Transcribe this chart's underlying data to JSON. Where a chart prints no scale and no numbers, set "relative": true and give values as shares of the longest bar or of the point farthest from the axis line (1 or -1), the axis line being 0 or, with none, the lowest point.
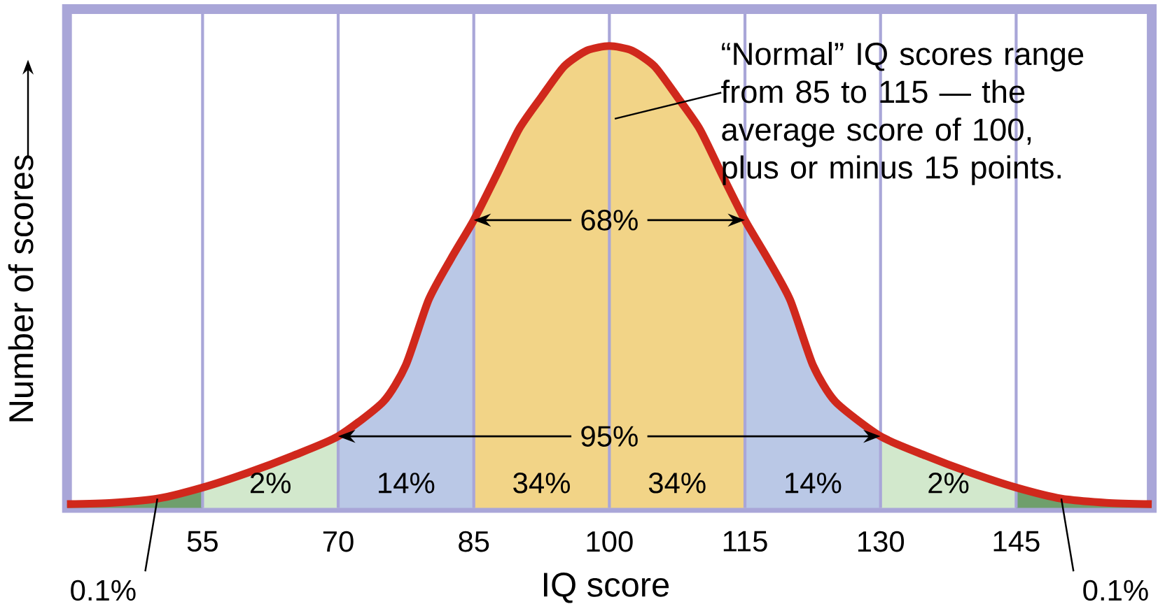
{
  "chart_data": {
    "type": "area",
    "relative": true,
    "xlabel": "IQ score",
    "ylabel": "Number of scores",
    "xlim": [
      40,
      160
    ],
    "xticks": [
      55,
      70,
      85,
      100,
      115,
      130,
      145
    ],
    "grid": "x",
    "series": [
      {
        "color": "#6f9f6c",
        "x": [
          40,
          45,
          50,
          55
        ],
        "values": [
          0.008,
          0.011,
          0.02,
          0.044
        ]
      },
      {
        "color": "#d2e8cc",
        "x": [
          55,
          60,
          65,
          70
        ],
        "values": [
          0.044,
          0.076,
          0.113,
          0.155
        ]
      },
      {
        "color": "#bac8e6",
        "x": [
          70,
          75,
          77.5,
          80,
          82.5,
          85
        ],
        "values": [
          0.155,
          0.23,
          0.31,
          0.45,
          0.54,
          0.623
        ]
      },
      {
        "color": "#f2d487",
        "x": [
          85,
          87.5,
          90,
          92.5,
          95,
          97.5,
          100
        ],
        "values": [
          0.623,
          0.72,
          0.82,
          0.89,
          0.956,
          0.99,
          1
        ]
      },
      {
        "color": "#f2d487",
        "x": [
          100,
          102.5,
          105,
          107.5,
          110,
          112.5,
          115
        ],
        "values": [
          1,
          0.99,
          0.956,
          0.89,
          0.82,
          0.72,
          0.623
        ]
      },
      {
        "color": "#bac8e6",
        "x": [
          115,
          117.5,
          120,
          122.5,
          125,
          130
        ],
        "values": [
          0.623,
          0.54,
          0.45,
          0.31,
          0.23,
          0.155
        ]
      },
      {
        "color": "#d2e8cc",
        "x": [
          130,
          135,
          140,
          145
        ],
        "values": [
          0.155,
          0.113,
          0.076,
          0.044
        ]
      },
      {
        "color": "#6f9f6c",
        "x": [
          145,
          150,
          155,
          160
        ],
        "values": [
          0.044,
          0.02,
          0.011,
          0.008
        ]
      },
      {
        "type": "line",
        "color": "#d0281c",
        "x": [
          40,
          45,
          50,
          55,
          60,
          65,
          70,
          75,
          77.5,
          80,
          82.5,
          85,
          87.5,
          90,
          92.5,
          95,
          97.5,
          100,
          102.5,
          105,
          107.5,
          110,
          112.5,
          115,
          117.5,
          120,
          122.5,
          125,
          130,
          135,
          140,
          145,
          150,
          155,
          160
        ],
        "values": [
          0.008,
          0.011,
          0.02,
          0.044,
          0.076,
          0.113,
          0.155,
          0.23,
          0.31,
          0.45,
          0.54,
          0.623,
          0.72,
          0.82,
          0.89,
          0.956,
          0.99,
          1,
          0.99,
          0.956,
          0.89,
          0.82,
          0.72,
          0.623,
          0.54,
          0.45,
          0.31,
          0.23,
          0.155,
          0.113,
          0.076,
          0.044,
          0.02,
          0.011,
          0.008
        ]
      }
    ],
    "annotations": [
      {
        "text": "0.1%",
        "x": 50,
        "y": 0.02
      },
      "2%",
      "14%",
      "34%",
      "34%",
      "14%",
      "2%",
      {
        "text": "0.1%",
        "x": 150,
        "y": 0.02
      },
      {
        "text": "68%",
        "x": 100,
        "y": 0.623
      },
      {
        "text": "95%",
        "x": 100,
        "y": 0.155
      },
      "“Normal” IQ scores range from 85 to 115 — the average score of 100, plus or minus 15 points."
    ]
  }
}
